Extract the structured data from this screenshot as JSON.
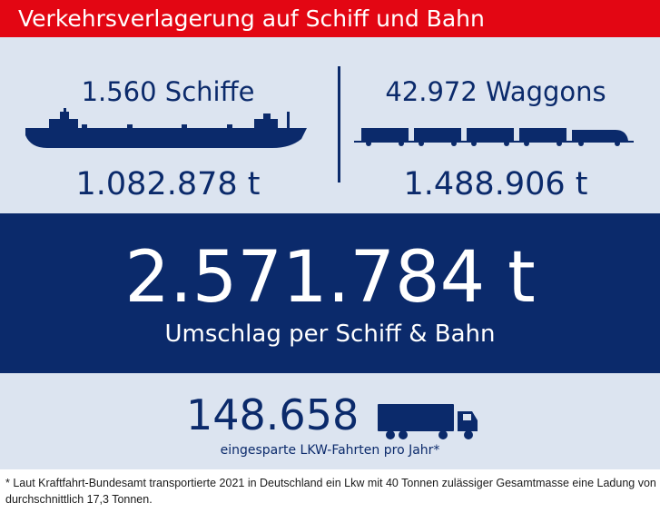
{
  "header": {
    "title": "Verkehrsverlagerung auf Schiff und Bahn"
  },
  "ships": {
    "count_label": "1.560 Schiffe",
    "tons_label": "1.082.878 t",
    "icon": "ship-icon"
  },
  "rail": {
    "count_label": "42.972 Waggons",
    "tons_label": "1.488.906 t",
    "icon": "train-icon"
  },
  "total": {
    "value": "2.571.784 t",
    "label": "Umschlag per Schiff & Bahn"
  },
  "trucks": {
    "value": "148.658",
    "label": "eingesparte LKW-Fahrten pro Jahr*",
    "icon": "truck-icon"
  },
  "footnote": {
    "text": "* Laut Kraftfahrt-Bundesamt transportierte 2021 in Deutschland ein Lkw mit 40 Tonnen zulässiger Gesamtmasse eine Ladung von durchschnittlich 17,3 Tonnen."
  },
  "colors": {
    "accent_red": "#e30613",
    "navy": "#0b2a6b",
    "light_blue": "#dce4f0"
  }
}
